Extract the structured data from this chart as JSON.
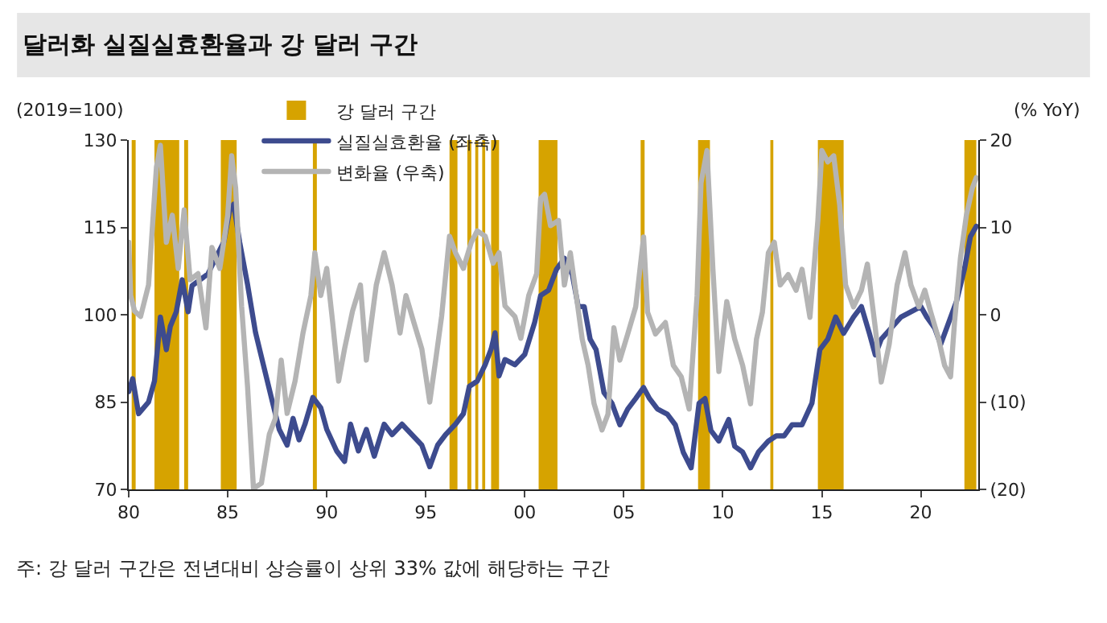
{
  "chart_data": {
    "type": "line",
    "title": "달러화 실질실효환율과 강 달러 구간",
    "ylabel": "(2019=100)",
    "y2label": "(% YoY)",
    "annotations": [
      "주: 강 달러 구간은 전년대비 상승률이 상위 33% 값에 해당하는 구간"
    ],
    "xlim": [
      1980,
      2022.9
    ],
    "xticks": [
      {
        "value": 1980,
        "label": "80"
      },
      {
        "value": 1985,
        "label": "85"
      },
      {
        "value": 1990,
        "label": "90"
      },
      {
        "value": 1995,
        "label": "95"
      },
      {
        "value": 2000,
        "label": "00"
      },
      {
        "value": 2005,
        "label": "05"
      },
      {
        "value": 2010,
        "label": "10"
      },
      {
        "value": 2015,
        "label": "15"
      },
      {
        "value": 2020,
        "label": "20"
      }
    ],
    "ylim": [
      70,
      130
    ],
    "yticks": [
      70,
      85,
      100,
      115,
      130
    ],
    "y2lim": [
      -20,
      20
    ],
    "y2ticks": [
      {
        "value": -20,
        "label": "(20)"
      },
      {
        "value": -10,
        "label": "(10)"
      },
      0,
      10,
      20
    ],
    "grid": false,
    "legend": "top left",
    "marker": "none",
    "line_style": "solid",
    "bands": [
      {
        "axis": "x",
        "from": 1980.15,
        "to": 1980.35,
        "label": "강 달러 구간",
        "color": "#d6a300"
      },
      {
        "axis": "x",
        "from": 1981.3,
        "to": 1982.55,
        "color": "#d6a300"
      },
      {
        "axis": "x",
        "from": 1982.8,
        "to": 1983.0,
        "color": "#d6a300"
      },
      {
        "axis": "x",
        "from": 1984.65,
        "to": 1985.45,
        "color": "#d6a300"
      },
      {
        "axis": "x",
        "from": 1989.3,
        "to": 1989.5,
        "color": "#d6a300"
      },
      {
        "axis": "x",
        "from": 1996.2,
        "to": 1996.6,
        "color": "#d6a300"
      },
      {
        "axis": "x",
        "from": 1997.1,
        "to": 1997.3,
        "color": "#d6a300"
      },
      {
        "axis": "x",
        "from": 1997.5,
        "to": 1997.65,
        "color": "#d6a300"
      },
      {
        "axis": "x",
        "from": 1997.85,
        "to": 1998.0,
        "color": "#d6a300"
      },
      {
        "axis": "x",
        "from": 1998.3,
        "to": 1998.7,
        "color": "#d6a300"
      },
      {
        "axis": "x",
        "from": 2000.7,
        "to": 2001.65,
        "color": "#d6a300"
      },
      {
        "axis": "x",
        "from": 2005.85,
        "to": 2006.05,
        "color": "#d6a300"
      },
      {
        "axis": "x",
        "from": 2008.75,
        "to": 2009.35,
        "color": "#d6a300"
      },
      {
        "axis": "x",
        "from": 2012.4,
        "to": 2012.55,
        "color": "#d6a300"
      },
      {
        "axis": "x",
        "from": 2014.8,
        "to": 2016.1,
        "color": "#d6a300"
      },
      {
        "axis": "x",
        "from": 2022.2,
        "to": 2022.8,
        "color": "#d6a300"
      }
    ],
    "series": [
      {
        "name": "실질실효환율 (좌축)",
        "color": "#3d4b8e",
        "x": [
          1980.0,
          1980.2,
          1980.5,
          1981.0,
          1981.3,
          1981.6,
          1981.9,
          1982.1,
          1982.4,
          1982.7,
          1983.0,
          1983.2,
          1983.6,
          1984.0,
          1984.4,
          1984.8,
          1985.1,
          1985.3,
          1985.6,
          1986.0,
          1986.4,
          1986.8,
          1987.2,
          1987.6,
          1988.0,
          1988.3,
          1988.6,
          1988.9,
          1989.3,
          1989.7,
          1990.0,
          1990.5,
          1990.9,
          1991.2,
          1991.6,
          1992.0,
          1992.4,
          1992.9,
          1993.3,
          1993.8,
          1994.3,
          1994.8,
          1995.2,
          1995.6,
          1996.0,
          1996.5,
          1996.9,
          1997.2,
          1997.6,
          1998.0,
          1998.3,
          1998.5,
          1998.7,
          1999.0,
          1999.5,
          2000.0,
          2000.5,
          2000.8,
          2001.2,
          2001.6,
          2002.0,
          2002.4,
          2002.7,
          2003.0,
          2003.3,
          2003.6,
          2004.0,
          2004.4,
          2004.8,
          2005.2,
          2005.6,
          2006.0,
          2006.3,
          2006.7,
          2007.2,
          2007.6,
          2008.0,
          2008.4,
          2008.8,
          2009.1,
          2009.4,
          2009.8,
          2010.3,
          2010.6,
          2011.0,
          2011.4,
          2011.8,
          2012.3,
          2012.7,
          2013.1,
          2013.5,
          2014.0,
          2014.5,
          2014.9,
          2015.3,
          2015.7,
          2016.1,
          2016.6,
          2017.0,
          2017.4,
          2017.7,
          2018.0,
          2018.5,
          2019.0,
          2019.5,
          2020.0,
          2020.3,
          2020.7,
          2021.0,
          2021.4,
          2021.8,
          2022.2,
          2022.5,
          2022.8
        ],
        "values": [
          86.8,
          89,
          83,
          85,
          88.6,
          99.6,
          94,
          98,
          100.5,
          106,
          100.5,
          105,
          106,
          107,
          109.8,
          112.5,
          118,
          119,
          112.5,
          105.2,
          97,
          91.4,
          85.8,
          80.3,
          77.6,
          82.2,
          78.5,
          81.2,
          85.8,
          84,
          80.3,
          76.6,
          74.8,
          81.2,
          76.6,
          80.3,
          75.7,
          81.2,
          79.4,
          81.2,
          79.4,
          77.6,
          73.9,
          77.6,
          79.4,
          81.2,
          83,
          87.7,
          88.6,
          91.4,
          94.1,
          96.9,
          89.5,
          92.3,
          91.4,
          93.2,
          98.7,
          103.3,
          104.2,
          107.8,
          109.7,
          106.9,
          101.4,
          101.4,
          95.8,
          94,
          86.6,
          84.8,
          81.1,
          83.8,
          85.6,
          87.5,
          85.6,
          83.8,
          82.9,
          81.1,
          76.4,
          73.7,
          84.8,
          85.6,
          80.1,
          78.3,
          82,
          77.4,
          76.4,
          73.7,
          76.4,
          78.3,
          79.2,
          79.2,
          81.1,
          81.1,
          84.8,
          94,
          95.8,
          99.6,
          96.8,
          99.6,
          101.4,
          96.8,
          93.1,
          95.8,
          97.7,
          99.6,
          100.5,
          101.4,
          99.6,
          97.7,
          94.9,
          98.6,
          102.3,
          107.8,
          113.4,
          115.2
        ]
      },
      {
        "name": "변화율 (우축)",
        "color": "#b4b4b4",
        "axis": "y2",
        "x": [
          1980.0,
          1980.1,
          1980.3,
          1980.6,
          1981.0,
          1981.4,
          1981.6,
          1981.9,
          1982.2,
          1982.5,
          1982.8,
          1983.1,
          1983.5,
          1983.9,
          1984.2,
          1984.6,
          1985.0,
          1985.2,
          1985.4,
          1985.7,
          1986.0,
          1986.3,
          1986.7,
          1987.1,
          1987.4,
          1987.7,
          1988.0,
          1988.4,
          1988.8,
          1989.2,
          1989.4,
          1989.7,
          1990.0,
          1990.3,
          1990.6,
          1990.9,
          1991.3,
          1991.7,
          1992.0,
          1992.5,
          1992.9,
          1993.3,
          1993.7,
          1994.0,
          1994.4,
          1994.8,
          1995.2,
          1995.5,
          1995.8,
          1996.2,
          1996.5,
          1996.9,
          1997.3,
          1997.6,
          1998.0,
          1998.4,
          1998.7,
          1999.0,
          1999.5,
          1999.8,
          2000.2,
          2000.6,
          2000.8,
          2001.0,
          2001.3,
          2001.7,
          2002.0,
          2002.3,
          2002.6,
          2002.9,
          2003.2,
          2003.5,
          2003.9,
          2004.2,
          2004.5,
          2004.8,
          2005.2,
          2005.6,
          2006.0,
          2006.2,
          2006.6,
          2007.1,
          2007.5,
          2007.9,
          2008.3,
          2008.7,
          2008.9,
          2009.2,
          2009.5,
          2009.8,
          2010.2,
          2010.6,
          2011.0,
          2011.4,
          2011.7,
          2012.0,
          2012.3,
          2012.6,
          2012.9,
          2013.3,
          2013.7,
          2014.0,
          2014.4,
          2014.8,
          2015.0,
          2015.3,
          2015.6,
          2015.9,
          2016.2,
          2016.6,
          2017.0,
          2017.3,
          2017.7,
          2018.0,
          2018.4,
          2018.8,
          2019.2,
          2019.5,
          2019.9,
          2020.2,
          2020.5,
          2020.9,
          2021.2,
          2021.5,
          2021.7,
          2022.0,
          2022.3,
          2022.6,
          2022.8
        ],
        "values": [
          8.3,
          2.2,
          0.4,
          -0.2,
          3.4,
          16.9,
          19.4,
          8.3,
          11.4,
          5.3,
          12,
          4,
          4.7,
          -1.5,
          7.7,
          5.3,
          11.4,
          18.2,
          14.5,
          1,
          -8.2,
          -19.9,
          -19.3,
          -13.7,
          -11.9,
          -5.2,
          -11.3,
          -7.6,
          -2.1,
          2.2,
          7.1,
          2.2,
          5.3,
          -0.9,
          -7.6,
          -3.9,
          0.4,
          3.4,
          -5.2,
          3.4,
          7.1,
          3.4,
          -2.1,
          2.2,
          -0.9,
          -3.9,
          -10,
          -5.2,
          -0.2,
          9,
          7.1,
          5.3,
          8.3,
          9.6,
          9,
          5.9,
          7.1,
          1,
          -0.2,
          -2.7,
          2.2,
          4.7,
          13.3,
          13.8,
          10.2,
          10.8,
          3.4,
          7.1,
          2.2,
          -2.8,
          -5.8,
          -10.2,
          -13.2,
          -11.4,
          -1.5,
          -5.2,
          -2.2,
          0.9,
          8.9,
          0.3,
          -2.2,
          -0.9,
          -5.8,
          -7.1,
          -10.8,
          2.2,
          15.1,
          18.8,
          5.2,
          -6.5,
          1.5,
          -2.8,
          -5.8,
          -10.2,
          -2.8,
          0.3,
          7.1,
          8.3,
          3.4,
          4.6,
          2.8,
          5.2,
          -0.3,
          10.8,
          18.8,
          17.5,
          18.2,
          12.6,
          3.4,
          0.9,
          2.8,
          5.8,
          -1.5,
          -7.7,
          -3.4,
          3.4,
          7.1,
          3.4,
          0.9,
          2.8,
          0.3,
          -2.8,
          -5.8,
          -7.1,
          -0.9,
          6.5,
          11.4,
          14.5,
          15.7
        ]
      }
    ]
  }
}
